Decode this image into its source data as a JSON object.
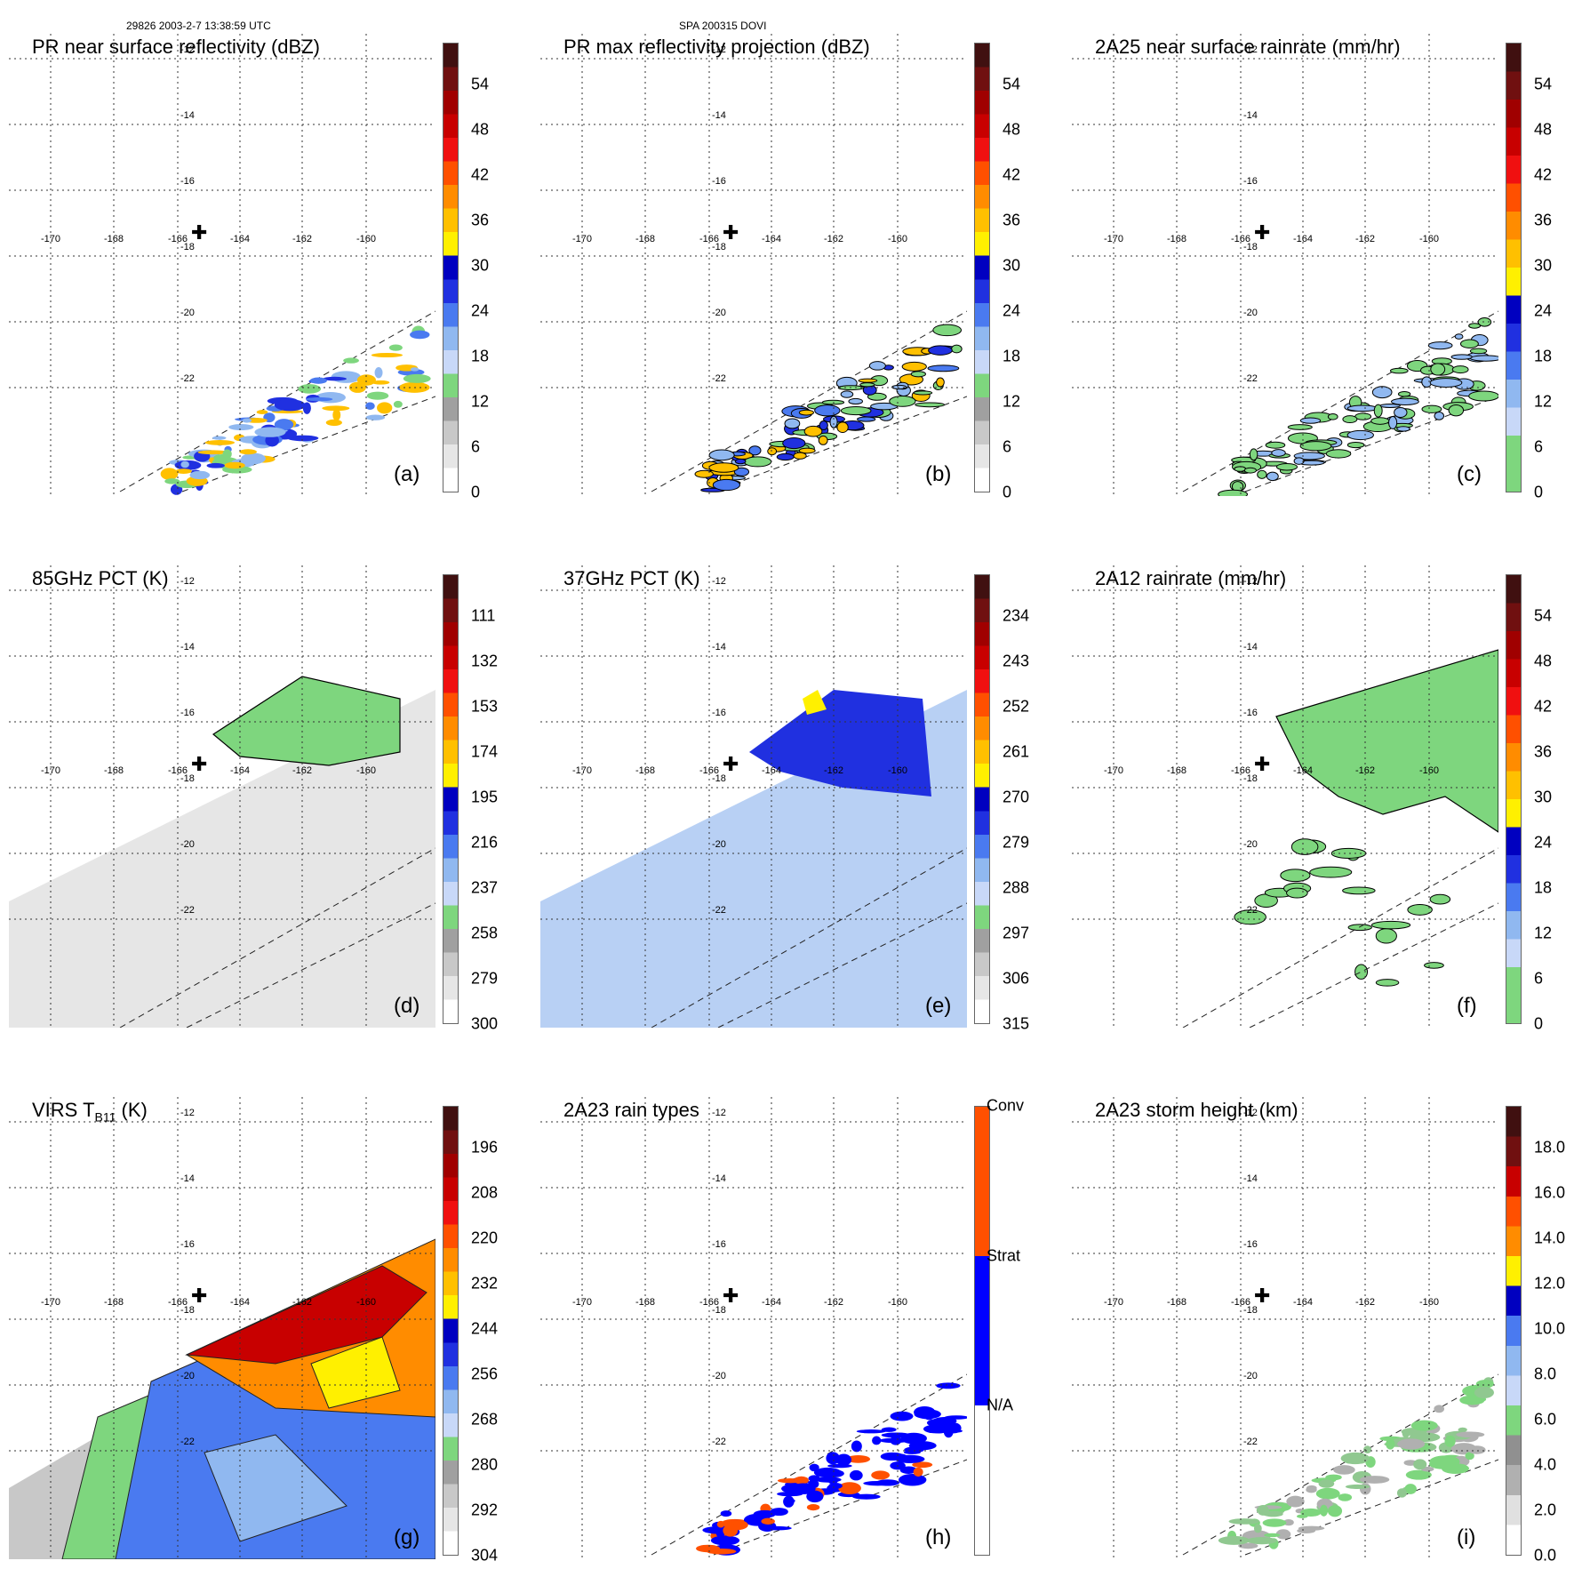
{
  "header": {
    "left_text": "29826 2003-2-7 13:38:59 UTC",
    "center_text": "SPA 200315 DOVI"
  },
  "grid": {
    "lat_labels": [
      "-12",
      "-14",
      "-16",
      "-18",
      "-20",
      "-22"
    ],
    "lon_labels": [
      "-170",
      "-168",
      "-166",
      "-164",
      "-162",
      "-160"
    ]
  },
  "panels": [
    {
      "title": "PR near surface reflectivity (dBZ)",
      "label": "(a)",
      "field": "pr_swath",
      "ticks": [
        "0",
        "6",
        "12",
        "18",
        "24",
        "30",
        "36",
        "42",
        "48",
        "54"
      ],
      "scale": "reflectivity"
    },
    {
      "title": "PR max reflectivity projection (dBZ)",
      "label": "(b)",
      "field": "pr_swath",
      "ticks": [
        "0",
        "6",
        "12",
        "18",
        "24",
        "30",
        "36",
        "42",
        "48",
        "54"
      ],
      "scale": "reflectivity"
    },
    {
      "title": "2A25 near surface rainrate (mm/hr)",
      "label": "(c)",
      "field": "pr_swath",
      "ticks": [
        "0",
        "6",
        "12",
        "18",
        "24",
        "30",
        "36",
        "42",
        "48",
        "54"
      ],
      "scale": "rainrate"
    },
    {
      "title": "85GHz PCT (K)",
      "label": "(d)",
      "field": "tmi_swath",
      "ticks": [
        "300",
        "279",
        "258",
        "237",
        "216",
        "195",
        "174",
        "153",
        "132",
        "111"
      ],
      "scale": "reflectivity"
    },
    {
      "title": "37GHz PCT (K)",
      "label": "(e)",
      "field": "tmi_swath",
      "ticks": [
        "315",
        "306",
        "297",
        "288",
        "279",
        "270",
        "261",
        "252",
        "243",
        "234"
      ],
      "scale": "reflectivity"
    },
    {
      "title": "2A12 rainrate (mm/hr)",
      "label": "(f)",
      "field": "tmi_swath",
      "ticks": [
        "0",
        "6",
        "12",
        "18",
        "24",
        "30",
        "36",
        "42",
        "48",
        "54"
      ],
      "scale": "rainrate"
    },
    {
      "title_main": "VIRS T",
      "title_sub": "B11",
      "title_unit": " (K)",
      "label": "(g)",
      "field": "virs_swath",
      "ticks": [
        "304",
        "292",
        "280",
        "268",
        "256",
        "244",
        "232",
        "220",
        "208",
        "196"
      ],
      "scale": "reflectivity"
    },
    {
      "title": "2A23 rain types",
      "label": "(h)",
      "field": "pr_swath",
      "ticks": [
        "N/A",
        "Strat",
        "Conv"
      ],
      "scale": "raintype"
    },
    {
      "title": "2A23 storm height (km)",
      "label": "(i)",
      "field": "pr_swath",
      "ticks": [
        "0.0",
        "2.0",
        "4.0",
        "6.0",
        "8.0",
        "10.0",
        "12.0",
        "14.0",
        "16.0",
        "18.0"
      ],
      "scale": "height"
    }
  ],
  "colors": {
    "scale_reflectivity": [
      "#ffffff",
      "#e6e6e6",
      "#c8c8c8",
      "#a0a0a0",
      "#7ed67e",
      "#c8d8f8",
      "#90b8f0",
      "#4a7af0",
      "#2030e0",
      "#0000c0",
      "#fff000",
      "#ffc000",
      "#ff8c00",
      "#ff5000",
      "#f01010",
      "#c80000",
      "#a00000",
      "#701010",
      "#401010"
    ],
    "scale_rainrate": [
      "#7ed67e",
      "#7ed67e",
      "#c8d8f8",
      "#90b8f0",
      "#4a7af0",
      "#2030e0",
      "#0000c0",
      "#fff000",
      "#ffc000",
      "#ff8c00",
      "#ff5000",
      "#f01010",
      "#c80000",
      "#a00000",
      "#701010",
      "#401010"
    ],
    "scale_raintype": [
      "#ffffff",
      "#ffffff",
      "#0000ff",
      "#0000ff",
      "#ff5000",
      "#ff5000"
    ],
    "scale_height": [
      "#ffffff",
      "#e0e0e0",
      "#b0b0b0",
      "#909090",
      "#7ed67e",
      "#c8d8f8",
      "#90b8f0",
      "#4a7af0",
      "#0000c0",
      "#fff000",
      "#ff8c00",
      "#ff5000",
      "#c80000",
      "#701010",
      "#401010"
    ]
  }
}
